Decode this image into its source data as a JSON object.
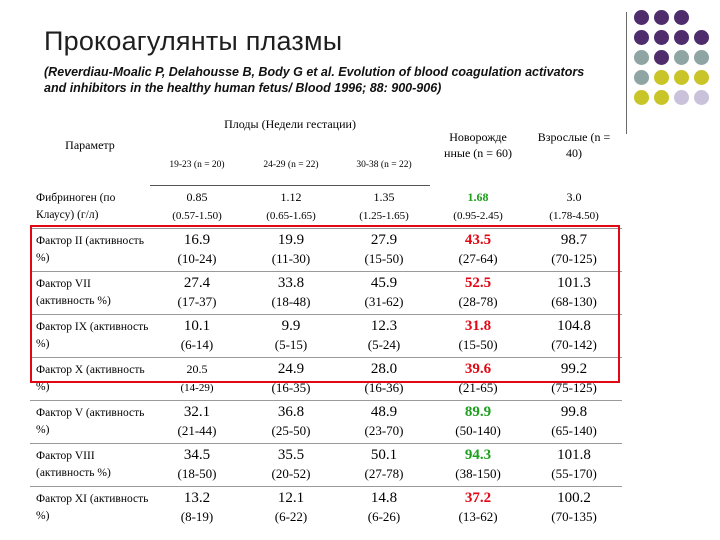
{
  "title": "Прокоагулянты плазмы",
  "subtitle": "(Reverdiau-Moalic P, Delahousse B, Body G et al. Evolution of blood coagulation activators and inhibitors in the healthy human fetus/ Blood 1996; 88: 900-906)",
  "colors": {
    "newborn_red": "#e30613",
    "newborn_green": "#1aa01a",
    "highlight_box": "#e30613",
    "dot_purple": "#4f2d6d",
    "dot_teal": "#8fa5a3",
    "dot_yellow": "#c9c528",
    "dot_lavender": "#c9c2da"
  },
  "table": {
    "header": {
      "param": "Параметр",
      "fetus_group": "Плоды (Недели гестации)",
      "newborn": "Новорожде нные (n = 60)",
      "adult": "Взрослые (n = 40)",
      "fetus_cols": [
        "19-23 (n = 20)",
        "24-29 (n = 22)",
        "30-38 (n = 22)"
      ]
    },
    "rows": [
      {
        "label": "Фибриноген (по Клаусу) (г/л)",
        "newborn_color": "green",
        "cells": [
          {
            "value": "0.85",
            "range": "(0.57-1.50)"
          },
          {
            "value": "1.12",
            "range": "(0.65-1.65)"
          },
          {
            "value": "1.35",
            "range": "(1.25-1.65)"
          },
          {
            "value": "1.68",
            "range": "(0.95-2.45)"
          },
          {
            "value": "3.0",
            "range": "(1.78-4.50)"
          }
        ]
      },
      {
        "label": "Фактор II (активность %)",
        "newborn_color": "red",
        "cells": [
          {
            "value": "16.9",
            "range": "(10-24)"
          },
          {
            "value": "19.9",
            "range": "(11-30)"
          },
          {
            "value": "27.9",
            "range": "(15-50)"
          },
          {
            "value": "43.5",
            "range": "(27-64)"
          },
          {
            "value": "98.7",
            "range": "(70-125)"
          }
        ]
      },
      {
        "label": "Фактор VII (активность %)",
        "newborn_color": "red",
        "cells": [
          {
            "value": "27.4",
            "range": "(17-37)"
          },
          {
            "value": "33.8",
            "range": "(18-48)"
          },
          {
            "value": "45.9",
            "range": "(31-62)"
          },
          {
            "value": "52.5",
            "range": "(28-78)"
          },
          {
            "value": "101.3",
            "range": "(68-130)"
          }
        ]
      },
      {
        "label": "Фактор IX (активность %)",
        "newborn_color": "red",
        "cells": [
          {
            "value": "10.1",
            "range": "(6-14)"
          },
          {
            "value": "9.9",
            "range": "(5-15)"
          },
          {
            "value": "12.3",
            "range": "(5-24)"
          },
          {
            "value": "31.8",
            "range": "(15-50)"
          },
          {
            "value": "104.8",
            "range": "(70-142)"
          }
        ]
      },
      {
        "label": "Фактор X (активность %)",
        "newborn_color": "red",
        "cells": [
          {
            "value": "20.5",
            "range": "(14-29)"
          },
          {
            "value": "24.9",
            "range": "(16-35)"
          },
          {
            "value": "28.0",
            "range": "(16-36)"
          },
          {
            "value": "39.6",
            "range": "(21-65)"
          },
          {
            "value": "99.2",
            "range": "(75-125)"
          }
        ]
      },
      {
        "label": "Фактор V (активность %)",
        "newborn_color": "green",
        "cells": [
          {
            "value": "32.1",
            "range": "(21-44)"
          },
          {
            "value": "36.8",
            "range": "(25-50)"
          },
          {
            "value": "48.9",
            "range": "(23-70)"
          },
          {
            "value": "89.9",
            "range": "(50-140)"
          },
          {
            "value": "99.8",
            "range": "(65-140)"
          }
        ]
      },
      {
        "label": "Фактор VIII (активность %)",
        "newborn_color": "green",
        "cells": [
          {
            "value": "34.5",
            "range": "(18-50)"
          },
          {
            "value": "35.5",
            "range": "(20-52)"
          },
          {
            "value": "50.1",
            "range": "(27-78)"
          },
          {
            "value": "94.3",
            "range": "(38-150)"
          },
          {
            "value": "101.8",
            "range": "(55-170)"
          }
        ]
      },
      {
        "label": "Фактор XI (активность %)",
        "newborn_color": "red",
        "cells": [
          {
            "value": "13.2",
            "range": "(8-19)"
          },
          {
            "value": "12.1",
            "range": "(6-22)"
          },
          {
            "value": "14.8",
            "range": "(6-26)"
          },
          {
            "value": "37.2",
            "range": "(13-62)"
          },
          {
            "value": "100.2",
            "range": "(70-135)"
          }
        ]
      }
    ]
  }
}
